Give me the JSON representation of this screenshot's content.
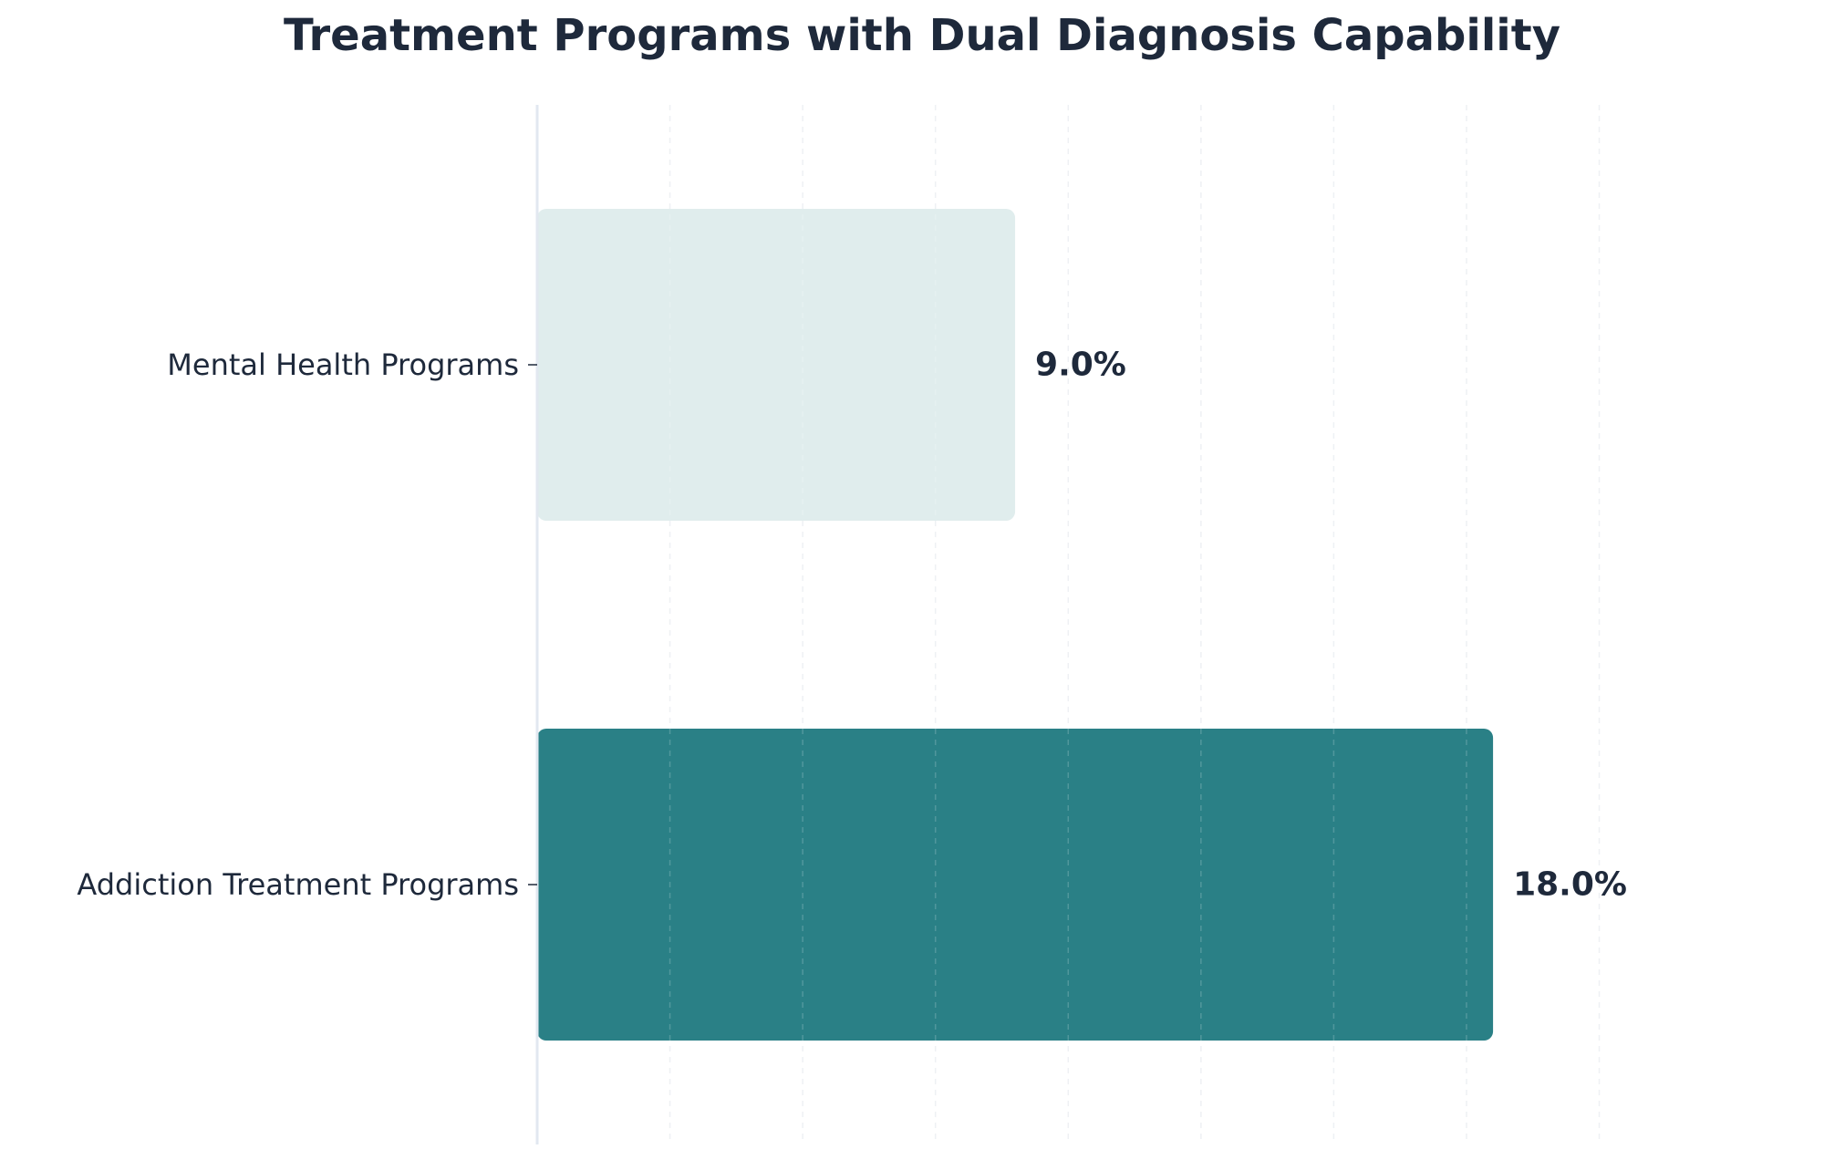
{
  "chart_data": {
    "type": "bar",
    "orientation": "horizontal",
    "title": "Treatment Programs with Dual Diagnosis Capability",
    "xlabel": "",
    "ylabel": "",
    "categories": [
      "Mental Health Programs",
      "Addiction Treatment Programs"
    ],
    "values": [
      9.0,
      18.0
    ],
    "value_labels": [
      "9.0%",
      "18.0%"
    ],
    "xlim": [
      0,
      22
    ],
    "grid": "vertical, dashed",
    "legend": "none",
    "colors": {
      "title": "#1e293b",
      "text": "#1e293b",
      "bars": [
        "#e0eded",
        "#2a8086"
      ],
      "axis": "#e2e8f0",
      "grid": "#dfe3ea"
    }
  }
}
